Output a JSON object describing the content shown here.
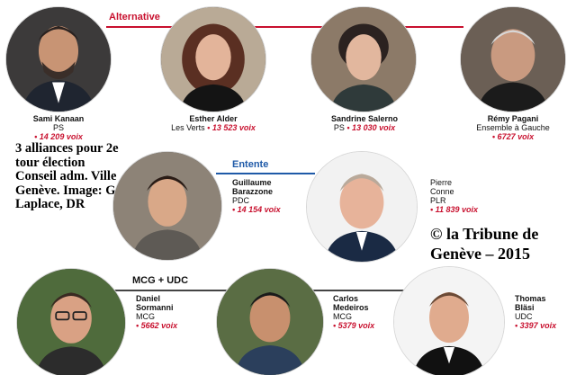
{
  "groups": {
    "alternative": "Alternative",
    "entente": "Entente",
    "mcg_udc": "MCG + UDC"
  },
  "colors": {
    "alternative": "#c8102e",
    "entente": "#1f5aa8",
    "mcg_udc": "#444444",
    "votes": "#c8102e"
  },
  "side_text": "3 alliances pour 2e tour élection Conseil adm. Ville Genève. Image: G. Laplace, DR",
  "credit": "© la Tribune de Genève – 2015",
  "candidates": {
    "kanaan": {
      "name": "Sami Kanaan",
      "party": "PS",
      "votes": "• 14 209 voix"
    },
    "alder": {
      "name": "Esther Alder",
      "party": "Les Verts",
      "votes": "• 13 523 voix"
    },
    "salerno": {
      "name": "Sandrine Salerno",
      "party": "PS",
      "votes": "• 13 030 voix"
    },
    "pagani": {
      "name": "Rémy Pagani",
      "party": "Ensemble à Gauche",
      "votes": "• 6727 voix"
    },
    "barazzone": {
      "name1": "Guillaume",
      "name2": "Barazzone",
      "party": "PDC",
      "votes": "• 14 154 voix"
    },
    "conne": {
      "name1": "Pierre",
      "name2": "Conne",
      "party": "PLR",
      "votes": "• 11 839 voix"
    },
    "sormanni": {
      "name1": "Daniel",
      "name2": "Sormanni",
      "party": "MCG",
      "votes": "• 5662 voix"
    },
    "medeiros": {
      "name1": "Carlos",
      "name2": "Medeiros",
      "party": "MCG",
      "votes": "• 5379 voix"
    },
    "blasi": {
      "name1": "Thomas",
      "name2": "Bläsi",
      "party": "UDC",
      "votes": "• 3397 voix"
    }
  }
}
